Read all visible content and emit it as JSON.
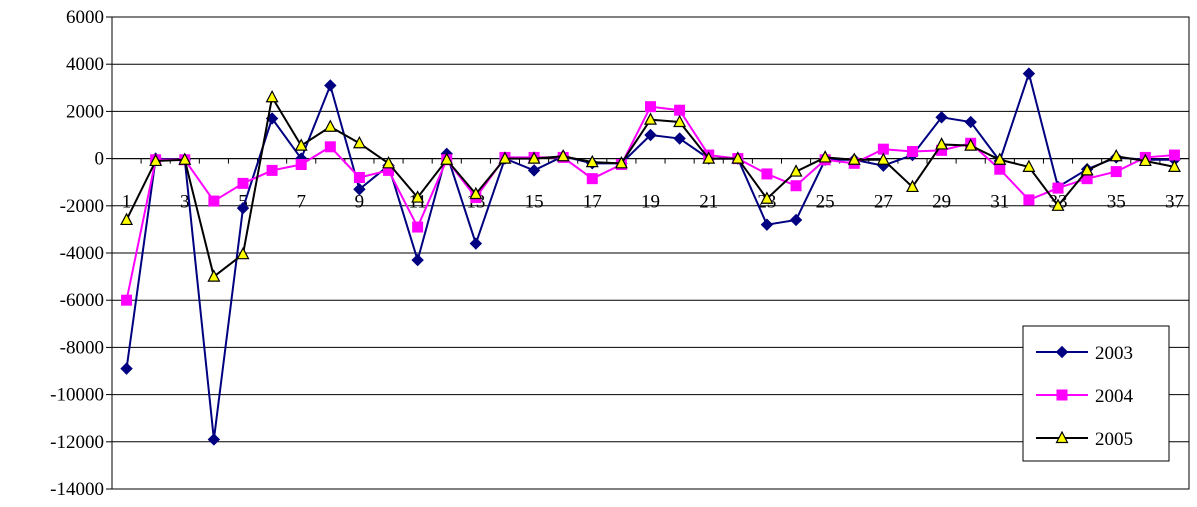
{
  "chart_data": {
    "type": "line",
    "title": "",
    "xlabel": "",
    "ylabel": "",
    "ylim": [
      -14000,
      6000
    ],
    "ytick_step": 2000,
    "x_tick_labels": [
      "1",
      "3",
      "5",
      "7",
      "9",
      "11",
      "13",
      "15",
      "17",
      "19",
      "21",
      "23",
      "25",
      "27",
      "29",
      "31",
      "33",
      "35",
      "37"
    ],
    "x": [
      1,
      2,
      3,
      4,
      5,
      6,
      7,
      8,
      9,
      10,
      11,
      12,
      13,
      14,
      15,
      16,
      17,
      18,
      19,
      20,
      21,
      22,
      23,
      24,
      25,
      26,
      27,
      28,
      29,
      30,
      31,
      32,
      33,
      34,
      35,
      36,
      37
    ],
    "grid": "horizontal major gridlines",
    "legend_position": "bottom-right",
    "series": [
      {
        "name": "2003",
        "color": "#000080",
        "marker": "diamond",
        "values": [
          -8900,
          0,
          -50,
          -11900,
          -2100,
          1700,
          0,
          3100,
          -1300,
          -300,
          -4300,
          200,
          -3600,
          0,
          -500,
          100,
          -200,
          -200,
          1000,
          850,
          0,
          0,
          -2800,
          -2600,
          -50,
          -50,
          -300,
          150,
          1750,
          1550,
          -100,
          3600,
          -1200,
          -450,
          50,
          -50,
          -50
        ]
      },
      {
        "name": "2004",
        "color": "#FF00FF",
        "marker": "square",
        "values": [
          -6000,
          -50,
          -50,
          -1800,
          -1050,
          -500,
          -250,
          500,
          -800,
          -500,
          -2900,
          -50,
          -1650,
          50,
          50,
          50,
          -850,
          -250,
          2200,
          2050,
          150,
          0,
          -650,
          -1150,
          -50,
          -200,
          400,
          300,
          350,
          650,
          -450,
          -1750,
          -1250,
          -850,
          -550,
          50,
          150
        ]
      },
      {
        "name": "2005",
        "color": "#000000",
        "marker": "triangle",
        "fill": "#FFFF00",
        "values": [
          -2600,
          -100,
          -50,
          -5000,
          -4050,
          2600,
          550,
          1350,
          650,
          -200,
          -1650,
          -50,
          -1500,
          0,
          0,
          100,
          -150,
          -200,
          1650,
          1550,
          0,
          0,
          -1700,
          -550,
          50,
          -50,
          -50,
          -1200,
          600,
          550,
          -50,
          -350,
          -2000,
          -500,
          100,
          -100,
          -350
        ]
      }
    ]
  }
}
